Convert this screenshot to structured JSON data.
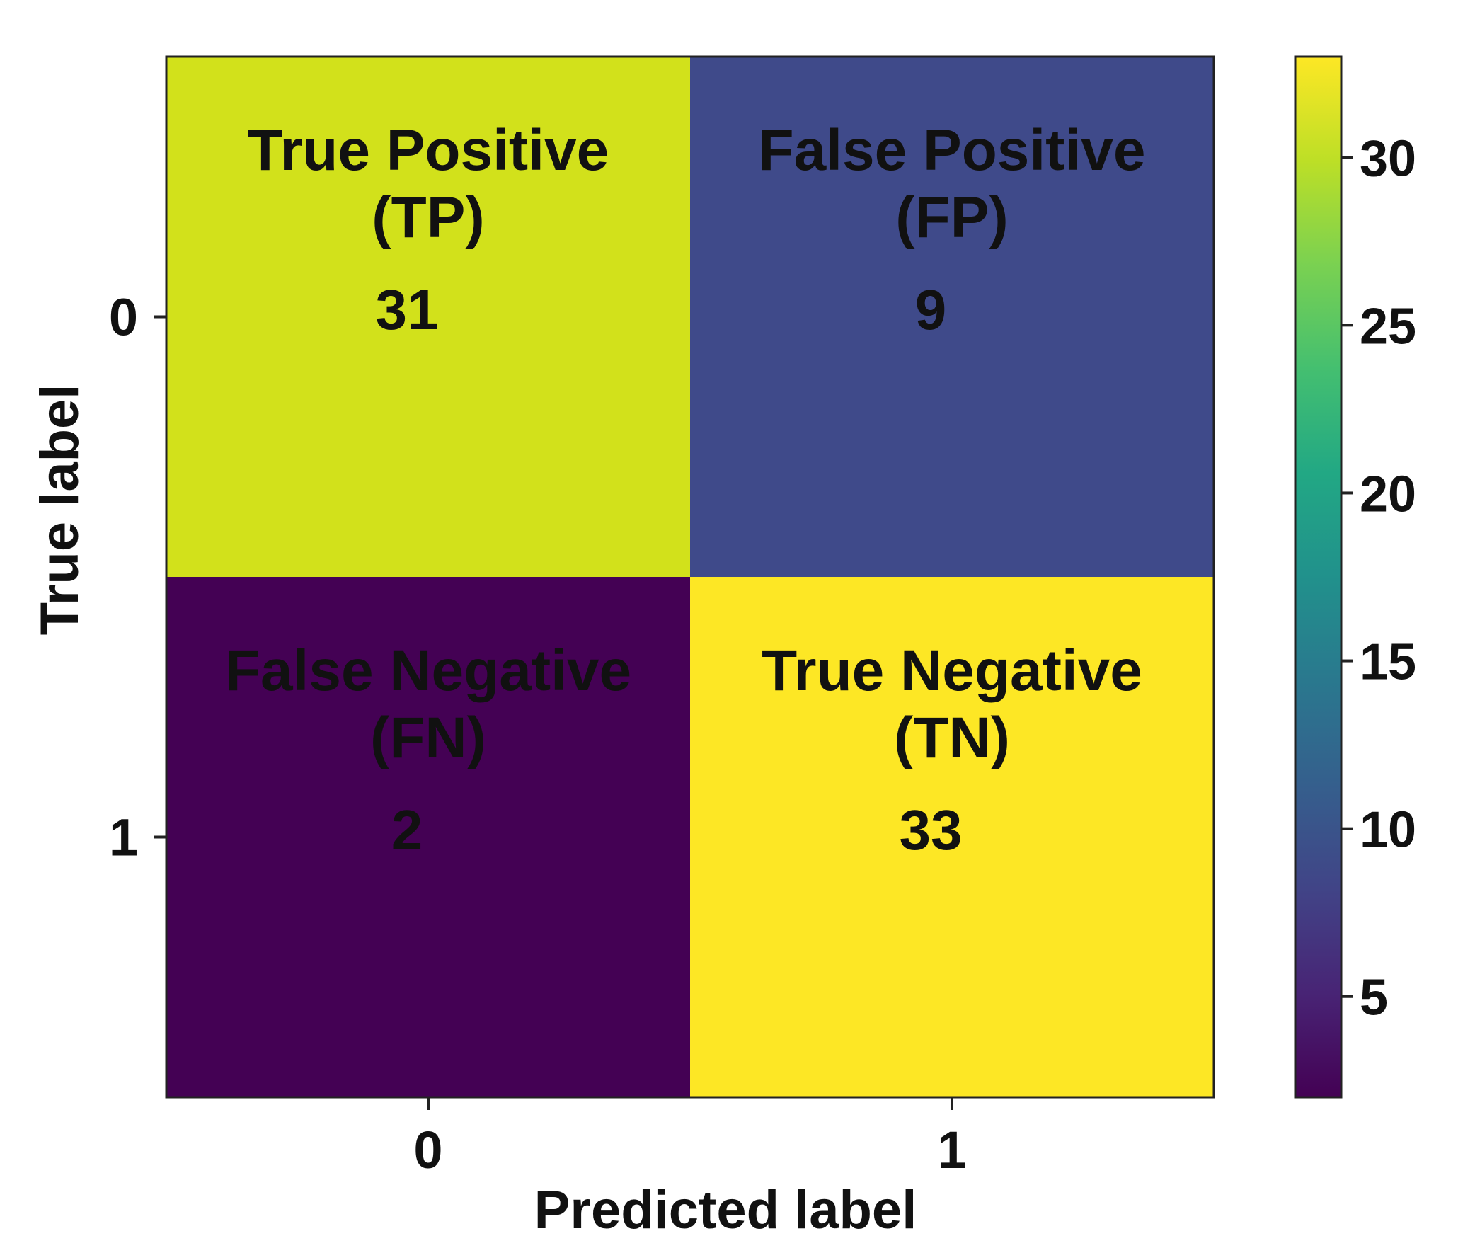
{
  "chart_data": {
    "type": "heatmap",
    "title": "",
    "xlabel": "Predicted label",
    "ylabel": "True label",
    "x_categories": [
      "0",
      "1"
    ],
    "y_categories": [
      "0",
      "1"
    ],
    "cells": [
      {
        "row": 0,
        "col": 0,
        "name": "True Positive",
        "abbr": "(TP)",
        "value": 31,
        "color": "#d2e11b",
        "text_color": "#111111"
      },
      {
        "row": 0,
        "col": 1,
        "name": "False Positive",
        "abbr": "(FP)",
        "value": 9,
        "color": "#3f4a8a",
        "text_color": "#ffffff"
      },
      {
        "row": 1,
        "col": 0,
        "name": "False Negative",
        "abbr": "(FN)",
        "value": 2,
        "color": "#440154",
        "text_color": "#ffffff"
      },
      {
        "row": 1,
        "col": 1,
        "name": "True Negative",
        "abbr": "(TN)",
        "value": 33,
        "color": "#fde725",
        "text_color": "#111111"
      }
    ],
    "colorbar": {
      "colormap": "viridis",
      "range": [
        2,
        33
      ],
      "ticks": [
        5,
        10,
        15,
        20,
        25,
        30
      ],
      "tick_labels": [
        "5",
        "10",
        "15",
        "20",
        "25",
        "30"
      ]
    }
  }
}
